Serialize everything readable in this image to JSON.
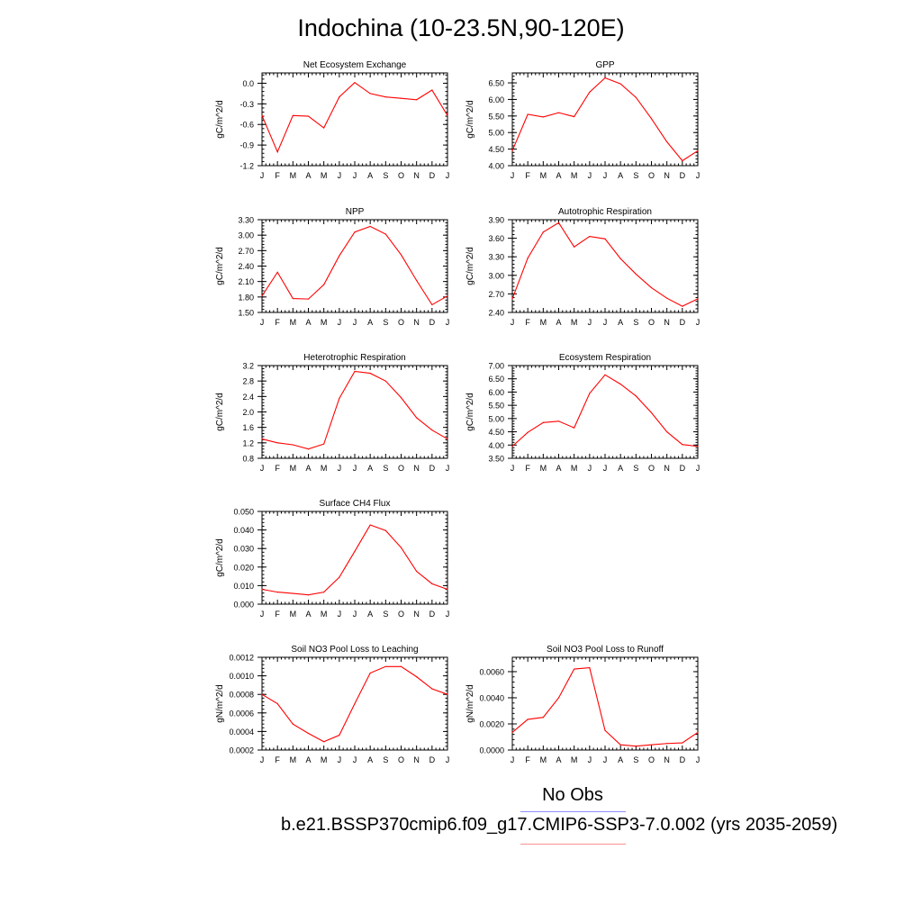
{
  "title": "Indochina (10-23.5N,90-120E)",
  "colors": {
    "model_line": "#ff0000",
    "obs_legend_line": "#8f8fff",
    "model_legend_line": "#ff8f8f"
  },
  "legend": {
    "obs_label": "No Obs",
    "case_label": "b.e21.BSSP370cmip6.f09_g17.CMIP6-SSP3-7.0.002 (yrs 2035-2059)"
  },
  "chart_data": [
    {
      "type": "line",
      "title": "Net Ecosystem Exchange",
      "ylabel": "gC/m^2/d",
      "categories": [
        "J",
        "F",
        "M",
        "A",
        "M",
        "J",
        "J",
        "A",
        "S",
        "O",
        "N",
        "D",
        "J"
      ],
      "ylim": [
        -1.2,
        0.15
      ],
      "yticks": [
        "0.0",
        "-0.3",
        "-0.6",
        "-0.9",
        "-1.2"
      ],
      "ytick_values": [
        0.0,
        -0.3,
        -0.6,
        -0.9,
        -1.2
      ],
      "values": [
        -0.47,
        -1.0,
        -0.47,
        -0.48,
        -0.65,
        -0.2,
        0.01,
        -0.15,
        -0.2,
        -0.22,
        -0.24,
        -0.1,
        -0.47
      ]
    },
    {
      "type": "line",
      "title": "GPP",
      "ylabel": "gC/m^2/d",
      "categories": [
        "J",
        "F",
        "M",
        "A",
        "M",
        "J",
        "J",
        "A",
        "S",
        "O",
        "N",
        "D",
        "J"
      ],
      "ylim": [
        4.0,
        6.8
      ],
      "yticks": [
        "6.50",
        "6.00",
        "5.50",
        "5.00",
        "4.50",
        "4.00"
      ],
      "ytick_values": [
        6.5,
        6.0,
        5.5,
        5.0,
        4.5,
        4.0
      ],
      "values": [
        4.45,
        5.55,
        5.47,
        5.6,
        5.48,
        6.22,
        6.65,
        6.47,
        6.06,
        5.42,
        4.72,
        4.15,
        4.45
      ]
    },
    {
      "type": "line",
      "title": "NPP",
      "ylabel": "gC/m^2/d",
      "categories": [
        "J",
        "F",
        "M",
        "A",
        "M",
        "J",
        "J",
        "A",
        "S",
        "O",
        "N",
        "D",
        "J"
      ],
      "ylim": [
        1.5,
        3.3
      ],
      "yticks": [
        "3.30",
        "3.00",
        "2.70",
        "2.40",
        "2.10",
        "1.80",
        "1.50"
      ],
      "ytick_values": [
        3.3,
        3.0,
        2.7,
        2.4,
        2.1,
        1.8,
        1.5
      ],
      "values": [
        1.82,
        2.28,
        1.77,
        1.76,
        2.04,
        2.6,
        3.06,
        3.17,
        3.02,
        2.62,
        2.12,
        1.65,
        1.82
      ]
    },
    {
      "type": "line",
      "title": "Autotrophic Respiration",
      "ylabel": "gC/m^2/d",
      "categories": [
        "J",
        "F",
        "M",
        "A",
        "M",
        "J",
        "J",
        "A",
        "S",
        "O",
        "N",
        "D",
        "J"
      ],
      "ylim": [
        2.4,
        3.9
      ],
      "yticks": [
        "3.90",
        "3.60",
        "3.30",
        "3.00",
        "2.70",
        "2.40"
      ],
      "ytick_values": [
        3.9,
        3.6,
        3.3,
        3.0,
        2.7,
        2.4
      ],
      "values": [
        2.62,
        3.28,
        3.7,
        3.85,
        3.46,
        3.63,
        3.59,
        3.27,
        3.02,
        2.8,
        2.63,
        2.5,
        2.62
      ]
    },
    {
      "type": "line",
      "title": "Heterotrophic Respiration",
      "ylabel": "gC/m^2/d",
      "categories": [
        "J",
        "F",
        "M",
        "A",
        "M",
        "J",
        "J",
        "A",
        "S",
        "O",
        "N",
        "D",
        "J"
      ],
      "ylim": [
        0.8,
        3.2
      ],
      "yticks": [
        "3.2",
        "2.8",
        "2.4",
        "2.0",
        "1.6",
        "1.2",
        "0.8"
      ],
      "ytick_values": [
        3.2,
        2.8,
        2.4,
        2.0,
        1.6,
        1.2,
        0.8
      ],
      "values": [
        1.3,
        1.2,
        1.15,
        1.04,
        1.17,
        2.35,
        3.05,
        3.0,
        2.8,
        2.37,
        1.85,
        1.53,
        1.3
      ]
    },
    {
      "type": "line",
      "title": "Ecosystem Respiration",
      "ylabel": "gC/m^2/d",
      "categories": [
        "J",
        "F",
        "M",
        "A",
        "M",
        "J",
        "J",
        "A",
        "S",
        "O",
        "N",
        "D",
        "J"
      ],
      "ylim": [
        3.5,
        7.0
      ],
      "yticks": [
        "7.00",
        "6.50",
        "6.00",
        "5.50",
        "5.00",
        "4.50",
        "4.00",
        "3.50"
      ],
      "ytick_values": [
        7.0,
        6.5,
        6.0,
        5.5,
        5.0,
        4.5,
        4.0,
        3.5
      ],
      "values": [
        3.95,
        4.48,
        4.85,
        4.9,
        4.65,
        5.95,
        6.65,
        6.3,
        5.85,
        5.22,
        4.5,
        4.02,
        3.95
      ]
    },
    {
      "type": "line",
      "title": "Surface CH4 Flux",
      "ylabel": "gC/m^2/d",
      "categories": [
        "J",
        "F",
        "M",
        "A",
        "M",
        "J",
        "J",
        "A",
        "S",
        "O",
        "N",
        "D",
        "J"
      ],
      "ylim": [
        0.0,
        0.05
      ],
      "yticks": [
        "0.050",
        "0.040",
        "0.030",
        "0.020",
        "0.010",
        "0.000"
      ],
      "ytick_values": [
        0.05,
        0.04,
        0.03,
        0.02,
        0.01,
        0.0
      ],
      "values": [
        0.008,
        0.0065,
        0.0058,
        0.005,
        0.0065,
        0.0145,
        0.0285,
        0.0427,
        0.0397,
        0.0305,
        0.0177,
        0.011,
        0.008
      ]
    },
    {
      "type": "line",
      "title": "Soil NO3 Pool Loss to Leaching",
      "ylabel": "gN/m^2/d",
      "categories": [
        "J",
        "F",
        "M",
        "A",
        "M",
        "J",
        "J",
        "A",
        "S",
        "O",
        "N",
        "D",
        "J"
      ],
      "ylim": [
        0.0002,
        0.0012
      ],
      "yticks": [
        "0.0012",
        "0.0010",
        "0.0008",
        "0.0006",
        "0.0004",
        "0.0002"
      ],
      "ytick_values": [
        0.0012,
        0.001,
        0.0008,
        0.0006,
        0.0004,
        0.0002
      ],
      "values": [
        0.0008,
        0.0007,
        0.00048,
        0.00038,
        0.00029,
        0.00036,
        0.0007,
        0.00103,
        0.0011,
        0.0011,
        0.00099,
        0.00086,
        0.0008
      ]
    },
    {
      "type": "line",
      "title": "Soil NO3 Pool Loss to Runoff",
      "ylabel": "gN/m^2/d",
      "categories": [
        "J",
        "F",
        "M",
        "A",
        "M",
        "J",
        "J",
        "A",
        "S",
        "O",
        "N",
        "D",
        "J"
      ],
      "ylim": [
        0.0,
        0.0071
      ],
      "yticks": [
        "0.0060",
        "0.0040",
        "0.0020",
        "0.0000"
      ],
      "ytick_values": [
        0.006,
        0.004,
        0.002,
        0.0
      ],
      "values": [
        0.00135,
        0.00235,
        0.0025,
        0.004,
        0.0062,
        0.0063,
        0.0015,
        0.0004,
        0.0003,
        0.0004,
        0.0005,
        0.00055,
        0.00135
      ]
    }
  ]
}
